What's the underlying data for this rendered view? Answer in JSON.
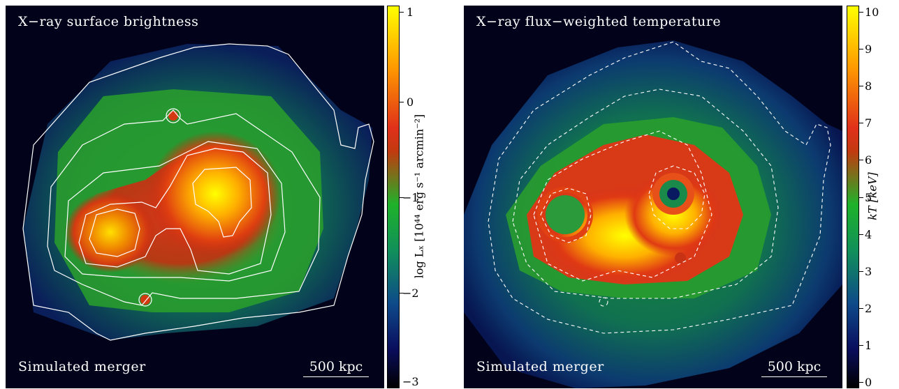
{
  "left_panel": {
    "title": "X−ray surface brightness",
    "label": "Simulated merger",
    "scale_bar": "500 kpc"
  },
  "right_panel": {
    "title": "X−ray flux−weighted temperature",
    "label": "Simulated merger",
    "scale_bar": "500 kpc"
  },
  "left_colorbar": {
    "title": "log L_X [10^44 erg s^-1 arcmin^-2]",
    "title_display": "log Lₓ [10⁴⁴ erg s⁻¹ arcmin⁻²]",
    "ticks": [
      "1",
      "0",
      "−1",
      "−2",
      "−3"
    ],
    "range": [
      -3,
      1
    ]
  },
  "right_colorbar": {
    "title": "kT [keV]",
    "ticks": [
      "10",
      "9",
      "8",
      "7",
      "6",
      "5",
      "4",
      "3",
      "2",
      "1",
      "0"
    ],
    "range": [
      0,
      10
    ]
  },
  "colors": {
    "background": "#02031a",
    "low": "#0a0d5c",
    "mid": "#1fb22a",
    "high": "#e0301a",
    "peak": "#ffff00",
    "contour": "#ffffff"
  }
}
